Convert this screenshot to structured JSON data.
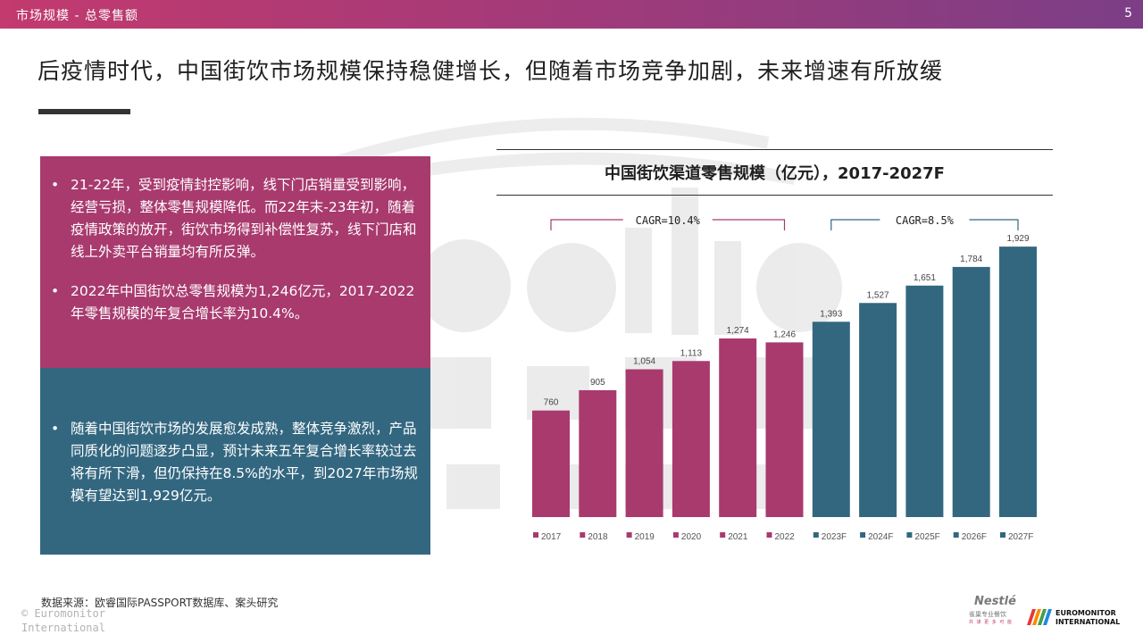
{
  "header": {
    "breadcrumb": "市场规模 - 总零售额",
    "page_number": "5"
  },
  "headline": "后疫情时代，中国街饮市场规模保持稳健增长，但随着市场竞争加剧，未来增速有所放缓",
  "left_panel": {
    "pink_bullets": [
      "21-22年，受到疫情封控影响，线下门店销量受到影响，经营亏损，整体零售规模降低。而22年末-23年初，随着疫情政策的放开，街饮市场得到补偿性复苏，线下门店和线上外卖平台销量均有所反弹。",
      "2022年中国街饮总零售规模为1,246亿元，2017-2022年零售规模的年复合增长率为10.4%。"
    ],
    "teal_bullets": [
      "随着中国街饮市场的发展愈发成熟，整体竞争激烈，产品同质化的问题逐步凸显，预计未来五年复合增长率较过去将有所下滑，但仍保持在8.5%的水平，到2027年市场规模有望达到1,929亿元。"
    ]
  },
  "chart_data": {
    "type": "bar",
    "title": "中国街饮渠道零售规模（亿元），2017-2027F",
    "categories": [
      "2017",
      "2018",
      "2019",
      "2020",
      "2021",
      "2022",
      "2023F",
      "2024F",
      "2025F",
      "2026F",
      "2027F"
    ],
    "values": [
      760,
      905,
      1054,
      1113,
      1274,
      1246,
      1393,
      1527,
      1651,
      1784,
      1929
    ],
    "data_labels": [
      "760",
      "905",
      "1,054",
      "1,113",
      "1,274",
      "1,246",
      "1,393",
      "1,527",
      "1,651",
      "1,784",
      "1,929"
    ],
    "colors": [
      "#a83a6e",
      "#a83a6e",
      "#a83a6e",
      "#a83a6e",
      "#a83a6e",
      "#a83a6e",
      "#336780",
      "#336780",
      "#336780",
      "#336780",
      "#336780"
    ],
    "ylim": [
      0,
      2000
    ],
    "grid": false,
    "legend_position": "bottom",
    "annotations": [
      {
        "text": "CAGR=10.4%",
        "from_category": "2017",
        "to_category": "2022",
        "color": "#a83a6e"
      },
      {
        "text": "CAGR=8.5%",
        "from_category": "2023F",
        "to_category": "2027F",
        "color": "#336780"
      }
    ]
  },
  "footer": {
    "source": "数据来源：欧睿国际PASSPORT数据库、案头研究",
    "copyright_line1": "© Euromonitor",
    "copyright_line2": "International",
    "logo_nestle": "Nestlé",
    "logo_nestle_sub": "雀巢专业餐饮",
    "logo_nestle_tagline": "共 谋 更 多 可 能",
    "logo_euromonitor_line1": "EUROMONITOR",
    "logo_euromonitor_line2": "INTERNATIONAL"
  },
  "colors": {
    "accent_pink": "#a83a6e",
    "accent_teal": "#336780"
  }
}
